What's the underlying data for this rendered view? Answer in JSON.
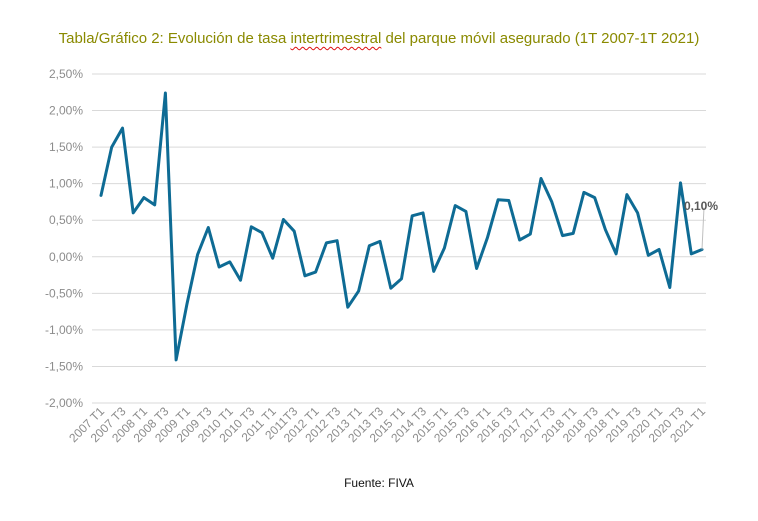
{
  "title_parts": {
    "before": "Tabla/Gráfico 2: Evolución de tasa ",
    "underlined": "intertrimestral",
    "after": " del parque móvil asegurado (1T 2007-1T 2021)"
  },
  "source": "Fuente: FIVA",
  "colors": {
    "title": "#8a8a00",
    "line": "#0e6b94",
    "grid": "#d9d9d9",
    "tick_text": "#8c8c8c"
  },
  "chart_data": {
    "type": "line",
    "title": "Tabla/Gráfico 2: Evolución de tasa intertrimestral del parque móvil asegurado (1T 2007-1T 2021)",
    "xlabel": "",
    "ylabel": "",
    "ylim": [
      -2.0,
      2.5
    ],
    "y_ticks": [
      "2,50%",
      "2,00%",
      "1,50%",
      "1,00%",
      "0,50%",
      "0,00%",
      "-0,50%",
      "-1,00%",
      "-1,50%",
      "-2,00%"
    ],
    "y_tick_values": [
      2.5,
      2.0,
      1.5,
      1.0,
      0.5,
      0.0,
      -0.5,
      -1.0,
      -1.5,
      -2.0
    ],
    "x_tick_labels": [
      "2007 T1",
      "2007 T3",
      "2008 T1",
      "2008 T3",
      "2009 T1",
      "2009 T3",
      "2010 T1",
      "2010 T3",
      "2011 T1",
      "2011T3",
      "2012 T1",
      "2012 T3",
      "2013 T1",
      "2013 T3",
      "2015 T1",
      "2014 T3",
      "2015 T1",
      "2015 T3",
      "2016 T1",
      "2016 T3",
      "2017 T1",
      "2017 T3",
      "2018 T1",
      "2018 T3",
      "2018 T1",
      "2019 T3",
      "2020 T1",
      "2020 T3",
      "2021 T1"
    ],
    "grid": true,
    "legend": "none",
    "series": [
      {
        "values": [
          0.84,
          1.5,
          1.76,
          0.6,
          0.81,
          0.71,
          2.24,
          -1.41,
          -0.65,
          0.03,
          0.4,
          -0.14,
          -0.07,
          -0.32,
          0.41,
          0.33,
          -0.02,
          0.51,
          0.35,
          -0.26,
          -0.21,
          0.19,
          0.22,
          -0.69,
          -0.47,
          0.15,
          0.21,
          -0.43,
          -0.3,
          0.56,
          0.6,
          -0.2,
          0.12,
          0.7,
          0.62,
          -0.16,
          0.26,
          0.78,
          0.77,
          0.23,
          0.31,
          1.07,
          0.75,
          0.29,
          0.32,
          0.88,
          0.81,
          0.37,
          0.04,
          0.85,
          0.6,
          0.02,
          0.1,
          -0.42,
          1.01,
          0.04,
          0.1
        ]
      }
    ],
    "annotations": [
      {
        "text": "0,10%",
        "point_index": 56
      }
    ]
  }
}
